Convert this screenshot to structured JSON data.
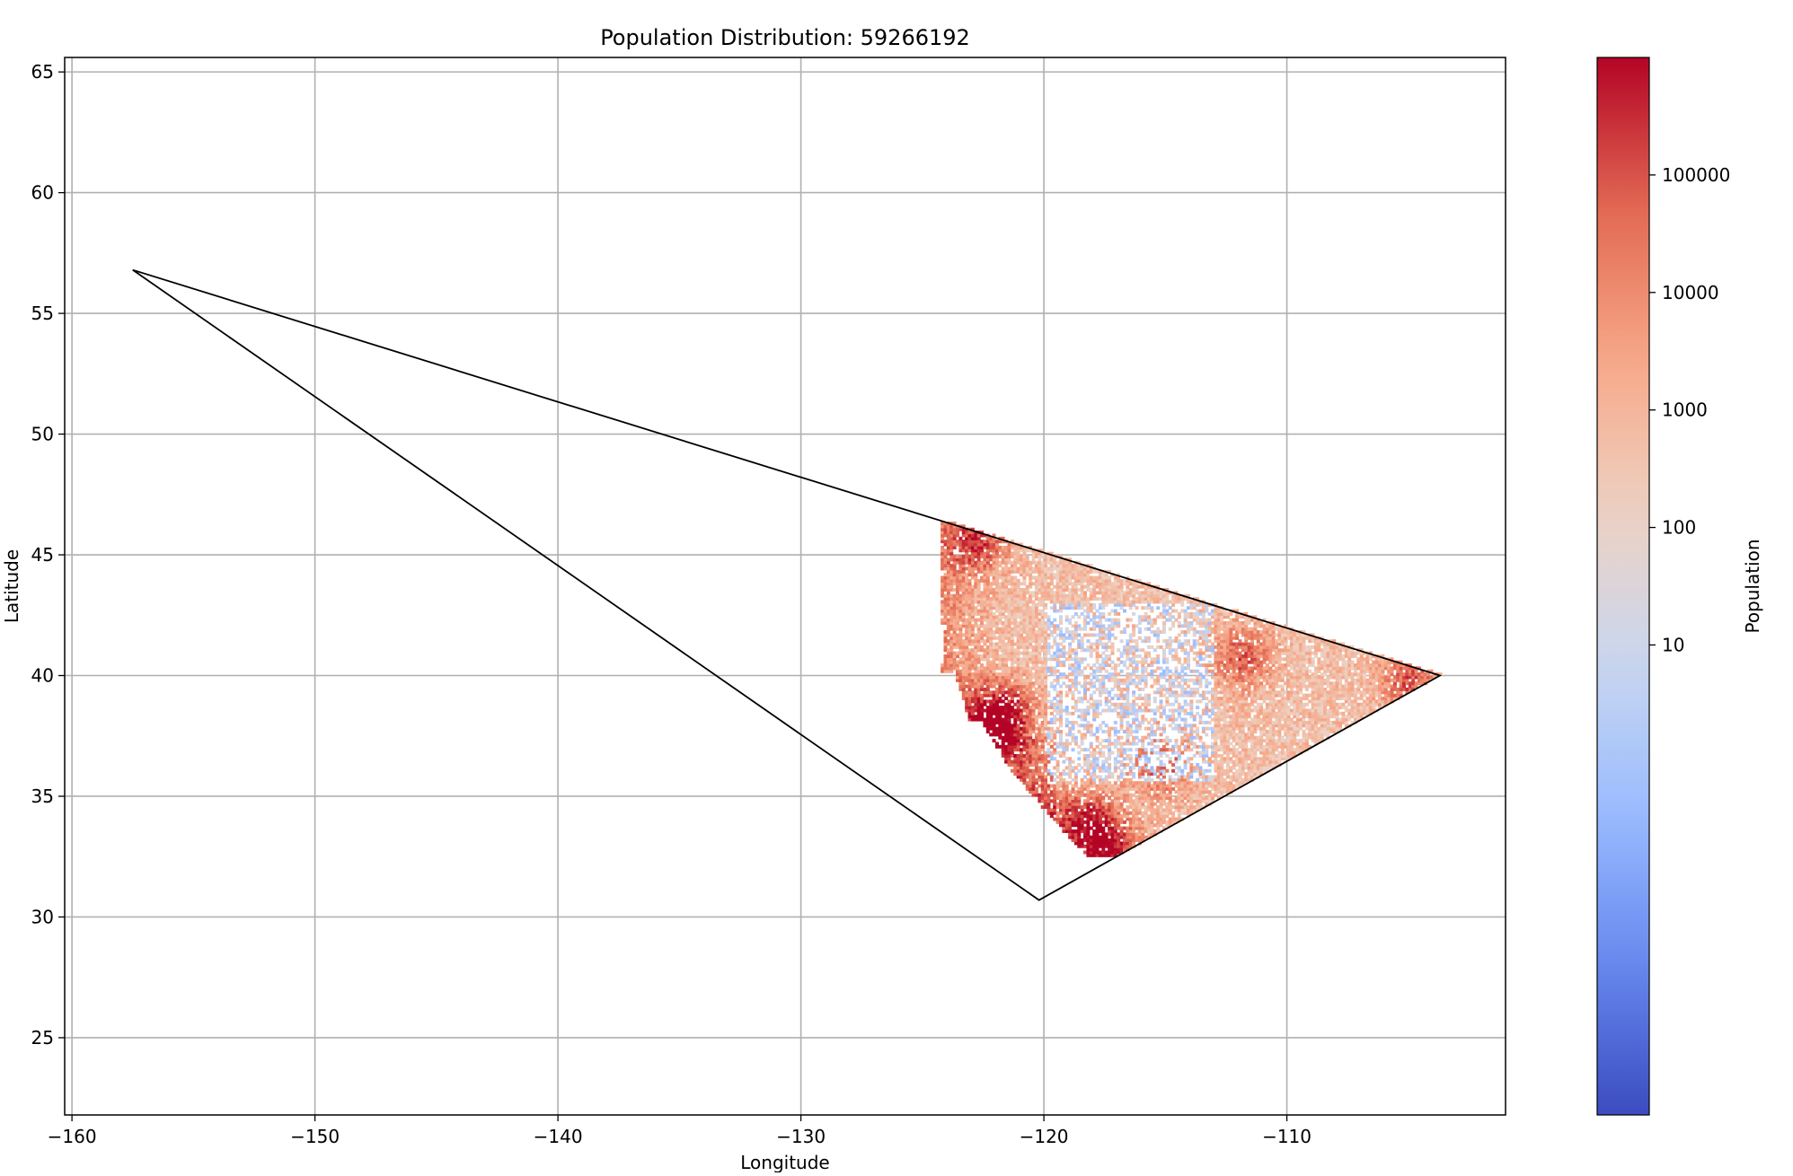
{
  "chart_data": {
    "type": "heatmap",
    "title": "Population Distribution: 59266192",
    "xlabel": "Longitude",
    "ylabel": "Latitude",
    "xlim": [
      -160.3,
      -101.0
    ],
    "ylim": [
      21.8,
      65.6
    ],
    "xticks": [
      -160,
      -150,
      -140,
      -130,
      -120,
      -110
    ],
    "xtick_labels": [
      "−160",
      "−150",
      "−140",
      "−130",
      "−120",
      "−110"
    ],
    "yticks": [
      25,
      30,
      35,
      40,
      45,
      50,
      55,
      60,
      65
    ],
    "ytick_labels": [
      "25",
      "30",
      "35",
      "40",
      "45",
      "50",
      "55",
      "60",
      "65"
    ],
    "grid": true,
    "polygon": {
      "vertices": [
        [
          -157.5,
          56.8
        ],
        [
          -103.7,
          40.0
        ],
        [
          -120.2,
          30.7
        ]
      ]
    },
    "heatmap": {
      "description_lon_range": [
        -124.5,
        -103.7
      ],
      "description_lat_range": [
        32.5,
        46.3
      ],
      "hotspots": [
        {
          "lon": -122.3,
          "lat": 37.8,
          "population": 100000
        },
        {
          "lon": -118.2,
          "lat": 34.0,
          "population": 100000
        },
        {
          "lon": -117.2,
          "lat": 32.8,
          "population": 100000
        },
        {
          "lon": -121.5,
          "lat": 38.6,
          "population": 50000
        },
        {
          "lon": -104.9,
          "lat": 39.7,
          "population": 100000
        },
        {
          "lon": -111.9,
          "lat": 40.7,
          "population": 50000
        },
        {
          "lon": -115.2,
          "lat": 36.2,
          "population": 50000
        },
        {
          "lon": -122.7,
          "lat": 45.5,
          "population": 50000
        }
      ]
    },
    "colorbar": {
      "label": "Population",
      "scale": "log",
      "cmap": "coolwarm",
      "vmin": 0.001,
      "vmax": 1000000,
      "ticks": [
        10,
        100,
        1000,
        10000,
        100000
      ],
      "tick_labels": [
        "10",
        "100",
        "1000",
        "10000",
        "100000"
      ],
      "colors": [
        "#3b4cc0",
        "#6788ee",
        "#9abbff",
        "#c9d7f0",
        "#edd1c2",
        "#f7a889",
        "#e26952",
        "#b40426"
      ]
    },
    "polygon_color": "#000000",
    "grid_color": "#b0b0b0"
  }
}
